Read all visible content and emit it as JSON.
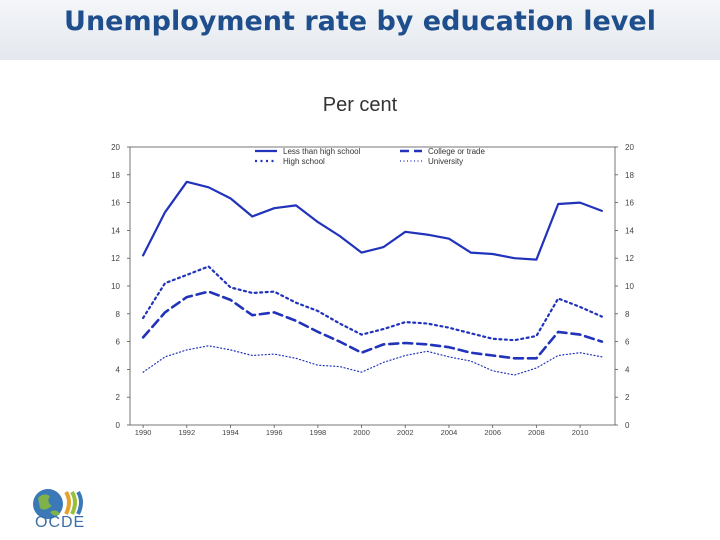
{
  "header": {
    "title": "Unemployment rate by education level"
  },
  "subtitle": "Per cent",
  "logo": {
    "text": "OCDE"
  },
  "colors": {
    "title": "#1f4e8c",
    "series": "#2233bb"
  },
  "chart_data": {
    "type": "line",
    "x": [
      1990,
      1991,
      1992,
      1993,
      1994,
      1995,
      1996,
      1997,
      1998,
      1999,
      2000,
      2001,
      2002,
      2003,
      2004,
      2005,
      2006,
      2007,
      2008,
      2009,
      2010,
      2011
    ],
    "xticks": [
      "1990",
      "1992",
      "1994",
      "1996",
      "1998",
      "2000",
      "2002",
      "2004",
      "2006",
      "2008",
      "2010"
    ],
    "yticks_left": [
      "20",
      "18",
      "16",
      "14",
      "12",
      "10",
      "8",
      "6",
      "4",
      "2",
      "0"
    ],
    "yticks_right": [
      "20",
      "18",
      "16",
      "14",
      "12",
      "10",
      "8",
      "6",
      "4",
      "2",
      "0"
    ],
    "ylim": [
      0,
      20
    ],
    "grid": false,
    "legend_position": "top-center",
    "series": [
      {
        "name": "Less than high school",
        "style": "solid",
        "values": [
          12.2,
          15.3,
          17.5,
          17.1,
          16.3,
          15.0,
          15.6,
          15.8,
          14.6,
          13.6,
          12.4,
          12.8,
          13.9,
          13.7,
          13.4,
          12.4,
          12.3,
          12.0,
          11.9,
          15.9,
          16.0,
          15.4
        ]
      },
      {
        "name": "College or trade",
        "style": "dashed",
        "values": [
          6.3,
          8.1,
          9.2,
          9.6,
          9.0,
          7.9,
          8.1,
          7.5,
          6.7,
          6.0,
          5.2,
          5.8,
          5.9,
          5.8,
          5.6,
          5.2,
          5.0,
          4.8,
          4.8,
          6.7,
          6.5,
          6.0
        ]
      },
      {
        "name": "High school",
        "style": "dotted",
        "values": [
          7.7,
          10.2,
          10.8,
          11.4,
          9.9,
          9.5,
          9.6,
          8.8,
          8.2,
          7.3,
          6.5,
          6.9,
          7.4,
          7.3,
          7.0,
          6.6,
          6.2,
          6.1,
          6.4,
          9.1,
          8.5,
          7.8
        ]
      },
      {
        "name": "University",
        "style": "fine-dotted",
        "values": [
          3.8,
          4.9,
          5.4,
          5.7,
          5.4,
          5.0,
          5.1,
          4.8,
          4.3,
          4.2,
          3.8,
          4.5,
          5.0,
          5.3,
          4.9,
          4.6,
          3.9,
          3.6,
          4.1,
          5.0,
          5.2,
          4.9
        ]
      }
    ]
  }
}
